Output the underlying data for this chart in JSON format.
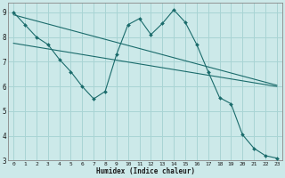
{
  "title": "",
  "xlabel": "Humidex (Indice chaleur)",
  "xlim": [
    -0.5,
    23.5
  ],
  "ylim": [
    3,
    9.4
  ],
  "background_color": "#cce9e9",
  "grid_color": "#a8d4d4",
  "line_color": "#1a6b6b",
  "x_ticks": [
    0,
    1,
    2,
    3,
    4,
    5,
    6,
    7,
    8,
    9,
    10,
    11,
    12,
    13,
    14,
    15,
    16,
    17,
    18,
    19,
    20,
    21,
    22,
    23
  ],
  "y_ticks": [
    3,
    4,
    5,
    6,
    7,
    8,
    9
  ],
  "line1_x": [
    0,
    1,
    2,
    3,
    4,
    5,
    6,
    7,
    8,
    9,
    10,
    11,
    12,
    13,
    14,
    15,
    16,
    17,
    18,
    19,
    20,
    21,
    22,
    23
  ],
  "line1_y": [
    9.0,
    8.5,
    8.0,
    7.7,
    7.1,
    6.6,
    6.0,
    5.5,
    5.8,
    7.3,
    8.5,
    8.75,
    8.1,
    8.55,
    9.1,
    8.6,
    7.7,
    6.6,
    5.55,
    5.3,
    4.05,
    3.5,
    3.2,
    3.1
  ],
  "line2_x": [
    0,
    23
  ],
  "line2_y": [
    8.9,
    6.05
  ],
  "line3_x": [
    0,
    23
  ],
  "line3_y": [
    7.75,
    6.0
  ]
}
